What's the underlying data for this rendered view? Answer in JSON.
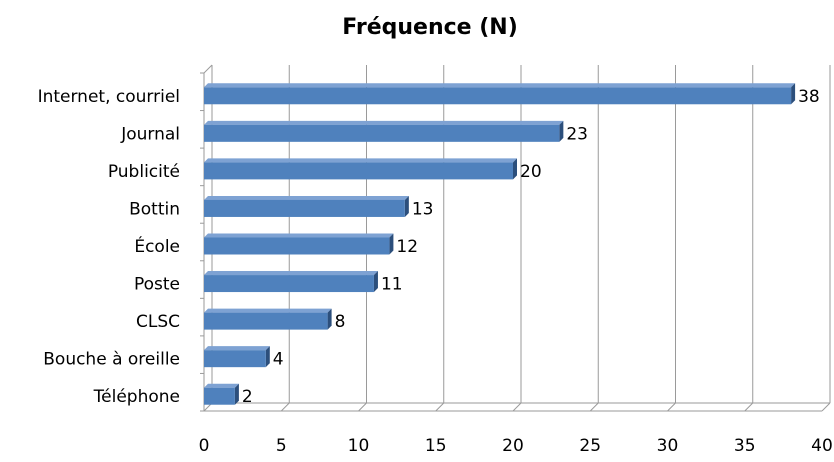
{
  "chart_data": {
    "type": "bar",
    "orientation": "horizontal",
    "title": "Fréquence (N)",
    "categories": [
      "Internet, courriel",
      "Journal",
      "Publicité",
      "Bottin",
      "École",
      "Poste",
      "CLSC",
      "Bouche à oreille",
      "Téléphone"
    ],
    "values": [
      38,
      23,
      20,
      13,
      12,
      11,
      8,
      4,
      2
    ],
    "xlim": [
      0,
      40
    ],
    "xticks": [
      "0",
      "5",
      "10",
      "15",
      "20",
      "25",
      "30",
      "35",
      "40"
    ],
    "grid": true,
    "legend": "none",
    "colors": {
      "bar_front": "#4f81bd",
      "bar_top": "#7ea2d3",
      "bar_side": "#2c4f7c",
      "grid": "#9a9a9a"
    }
  }
}
